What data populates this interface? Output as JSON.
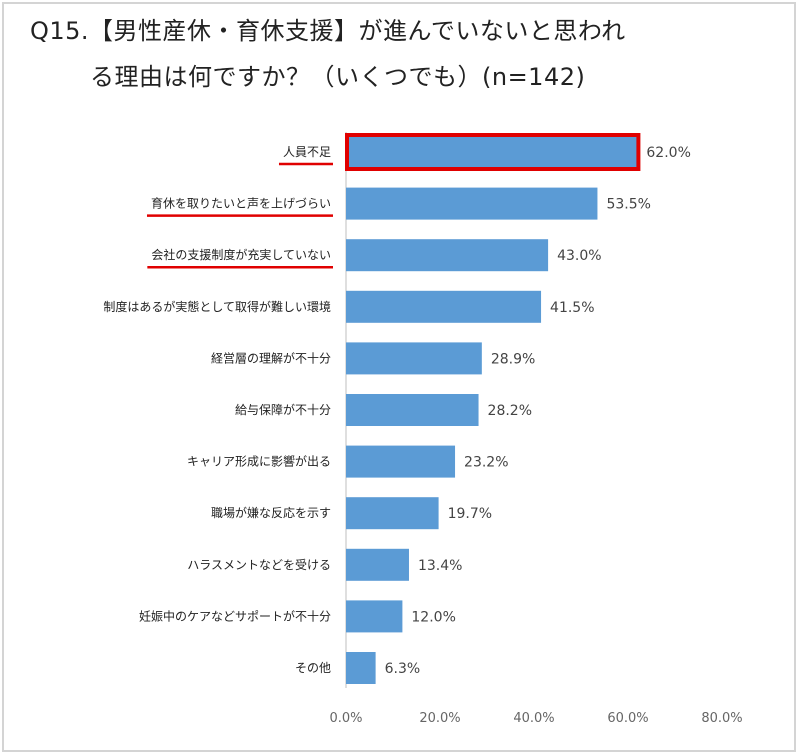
{
  "title": {
    "line1": "Q15.【男性産休・育休支援】が進んでいないと思われ",
    "line2": "る理由は何ですか？（いくつでも）(n=142)"
  },
  "colors": {
    "bar": "#5b9bd5",
    "highlight": "#e00000",
    "axis": "#bfbfbf"
  },
  "chart_data": {
    "type": "bar",
    "orientation": "horizontal",
    "categories": [
      "人員不足",
      "育休を取りたいと声を上げづらい",
      "会社の支援制度が充実していない",
      "制度はあるが実態として取得が難しい環境",
      "経営層の理解が不十分",
      "給与保障が不十分",
      "キャリア形成に影響が出る",
      "職場が嫌な反応を示す",
      "ハラスメントなどを受ける",
      "妊娠中のケアなどサポートが不十分",
      "その他"
    ],
    "values": [
      62.0,
      53.5,
      43.0,
      41.5,
      28.9,
      28.2,
      23.2,
      19.7,
      13.4,
      12.0,
      6.3
    ],
    "value_labels": [
      "62.0%",
      "53.5%",
      "43.0%",
      "41.5%",
      "28.9%",
      "28.2%",
      "23.2%",
      "19.7%",
      "13.4%",
      "12.0%",
      "6.3%"
    ],
    "xlim": [
      0,
      80
    ],
    "ticks": [
      0,
      20,
      40,
      60,
      80
    ],
    "tick_labels": [
      "0.0%",
      "20.0%",
      "40.0%",
      "60.0%",
      "80.0%"
    ],
    "grid": false,
    "highlighted_bar": 0,
    "underlined_categories": [
      0,
      1,
      2
    ]
  }
}
